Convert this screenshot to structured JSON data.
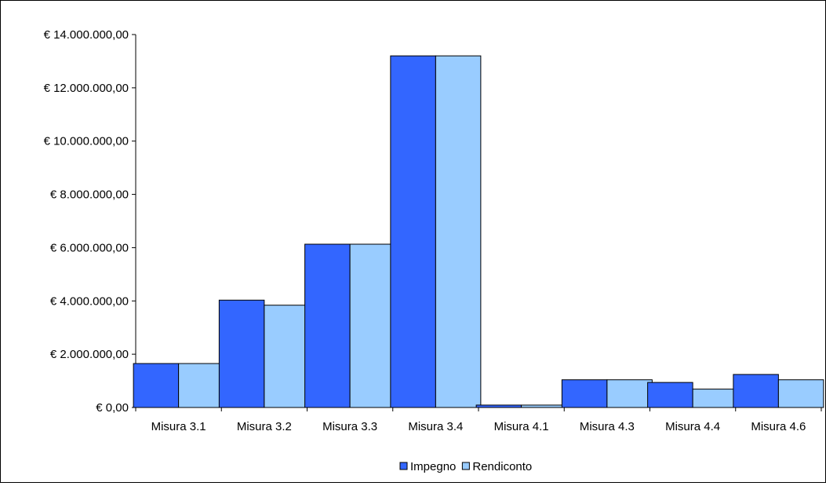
{
  "chart_data": {
    "type": "bar",
    "categories": [
      "Misura 3.1",
      "Misura 3.2",
      "Misura 3.3",
      "Misura 3.4",
      "Misura 4.1",
      "Misura 4.3",
      "Misura 4.4",
      "Misura 4.6"
    ],
    "series": [
      {
        "name": "Impegno",
        "color": "#3366FF",
        "values": [
          1650000,
          4030000,
          6130000,
          13200000,
          90000,
          1040000,
          940000,
          1240000
        ]
      },
      {
        "name": "Rendiconto",
        "color": "#99CCFF",
        "values": [
          1650000,
          3840000,
          6130000,
          13200000,
          90000,
          1040000,
          690000,
          1040000
        ]
      }
    ],
    "y_ticks": [
      "€ 0,00",
      "€ 2.000.000,00",
      "€ 4.000.000,00",
      "€ 6.000.000,00",
      "€ 8.000.000,00",
      "€ 10.000.000,00",
      "€ 12.000.000,00",
      "€ 14.000.000,00"
    ],
    "ylim": [
      0,
      14000000
    ],
    "ytick_step": 2000000,
    "title": "",
    "xlabel": "",
    "ylabel": "",
    "grid": false,
    "legend_position": "bottom"
  }
}
